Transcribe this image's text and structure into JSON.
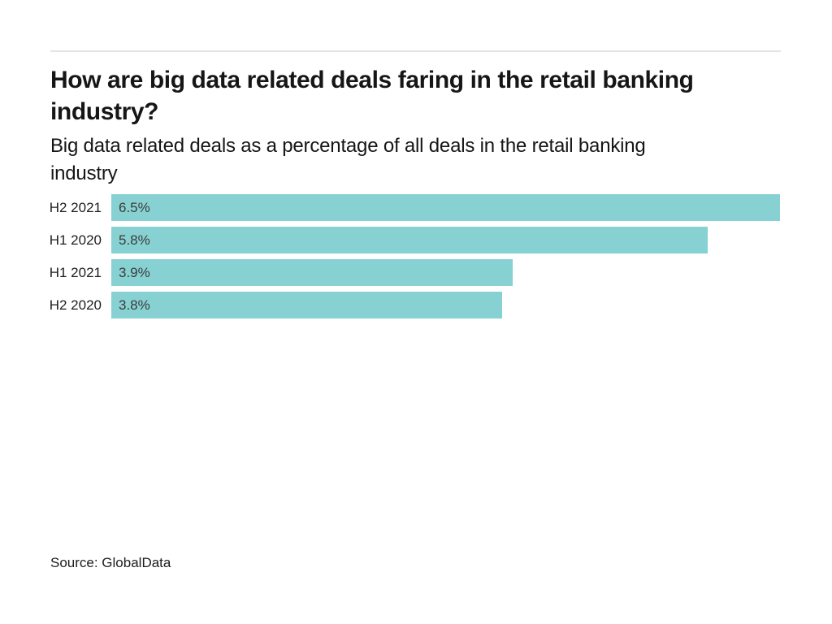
{
  "header": {
    "title_lines": [
      "How are big data related deals faring in the retail banking",
      "industry?"
    ],
    "subtitle_lines": [
      "Big data related deals as a percentage of all deals in the retail banking",
      "industry"
    ]
  },
  "chart_data": {
    "type": "bar",
    "orientation": "horizontal",
    "title": "How are big data related deals faring in the retail banking industry?",
    "subtitle": "Big data related deals as a percentage of all deals in the retail banking industry",
    "categories": [
      "H2 2021",
      "H1 2020",
      "H1 2021",
      "H2 2020"
    ],
    "values": [
      6.5,
      5.8,
      3.9,
      3.8
    ],
    "value_labels": [
      "6.5%",
      "5.8%",
      "3.9%",
      "3.8%"
    ],
    "xlim": [
      0,
      6.5
    ],
    "grid": false,
    "legend": false,
    "bar_color": "#87d1d3",
    "value_label_position": "inside-left"
  },
  "footer": {
    "source": "Source: GlobalData"
  }
}
